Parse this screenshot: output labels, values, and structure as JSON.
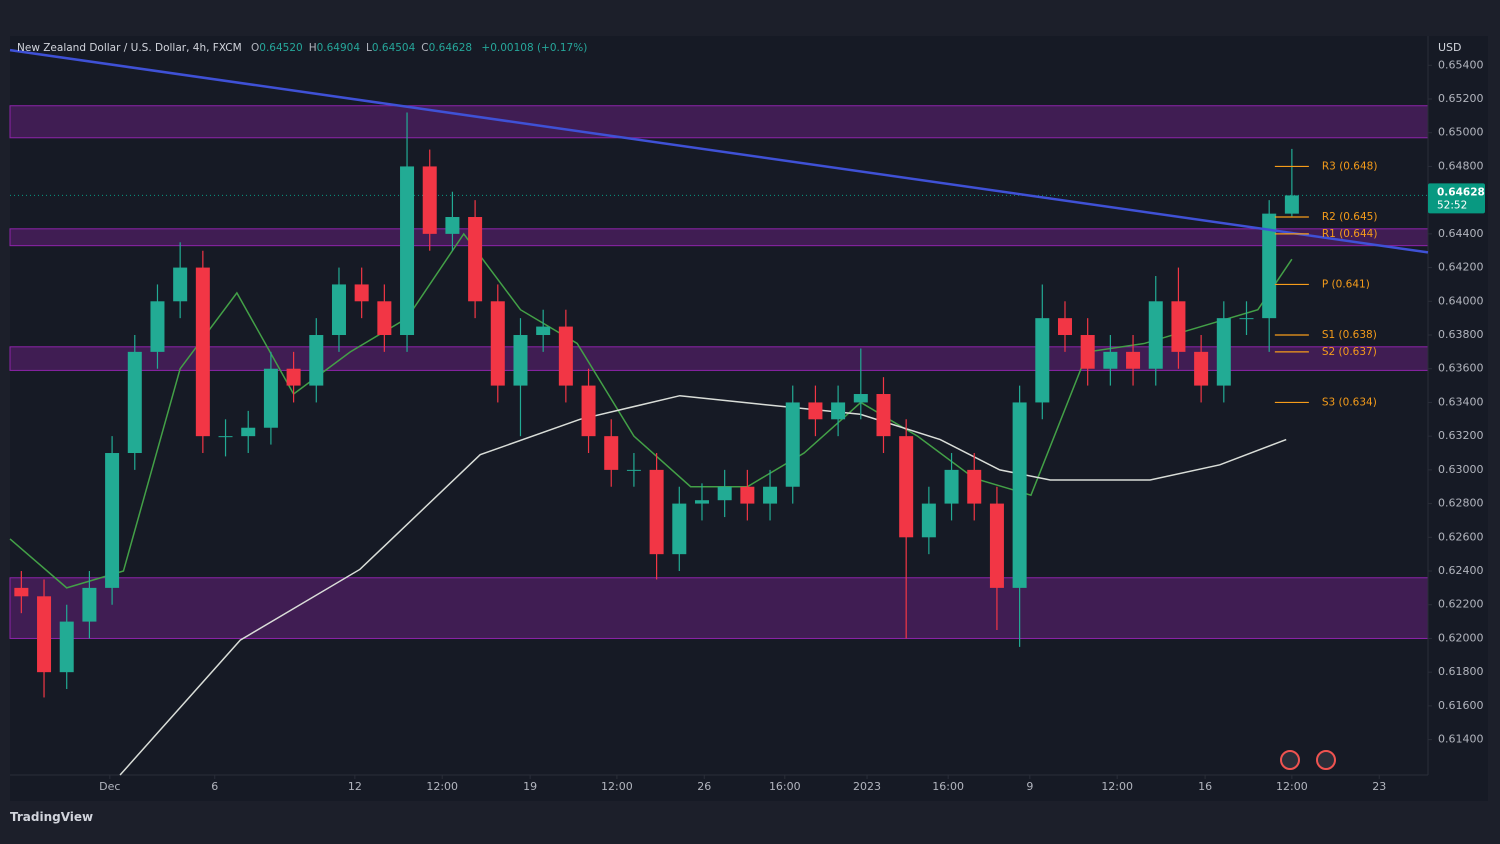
{
  "header": {
    "symbol": "New Zealand Dollar / U.S. Dollar, 4h, FXCM",
    "fields": [
      {
        "key": "O",
        "value": "0.64520"
      },
      {
        "key": "H",
        "value": "0.64904"
      },
      {
        "key": "L",
        "value": "0.64504"
      },
      {
        "key": "C",
        "value": "0.64628"
      }
    ],
    "change": "+0.00108 (+0.17%)"
  },
  "chart_data": {
    "type": "candlestick",
    "currency": "USD",
    "x": [
      2,
      6,
      10,
      14,
      18,
      22,
      26,
      30,
      34,
      38,
      42,
      46,
      50,
      54,
      58,
      62,
      66,
      70,
      74,
      78,
      82,
      86,
      90,
      94,
      98,
      102,
      106,
      110,
      114,
      118,
      122,
      126,
      130,
      134,
      138,
      142,
      146,
      150,
      154,
      158,
      162,
      166,
      170,
      174,
      178,
      182,
      186,
      190,
      194,
      198,
      202,
      206,
      210,
      214,
      218,
      222,
      226
    ],
    "open": [
      0.623,
      0.6225,
      0.618,
      0.621,
      0.623,
      0.631,
      0.637,
      0.64,
      0.642,
      0.632,
      0.632,
      0.6325,
      0.636,
      0.635,
      0.638,
      0.641,
      0.64,
      0.638,
      0.648,
      0.644,
      0.645,
      0.64,
      0.635,
      0.638,
      0.6385,
      0.635,
      0.632,
      0.63,
      0.63,
      0.625,
      0.628,
      0.6282,
      0.629,
      0.628,
      0.629,
      0.634,
      0.633,
      0.634,
      0.6345,
      0.632,
      0.626,
      0.628,
      0.63,
      0.628,
      0.623,
      0.634,
      0.639,
      0.638,
      0.636,
      0.637,
      0.636,
      0.64,
      0.637,
      0.635,
      0.639,
      0.639,
      0.6452
    ],
    "high": [
      0.624,
      0.6235,
      0.622,
      0.624,
      0.632,
      0.638,
      0.641,
      0.6435,
      0.643,
      0.633,
      0.6335,
      0.637,
      0.637,
      0.639,
      0.642,
      0.642,
      0.641,
      0.6512,
      0.649,
      0.6465,
      0.646,
      0.641,
      0.639,
      0.6395,
      0.6395,
      0.636,
      0.633,
      0.631,
      0.631,
      0.629,
      0.6292,
      0.63,
      0.63,
      0.63,
      0.635,
      0.635,
      0.635,
      0.6372,
      0.6355,
      0.633,
      0.629,
      0.631,
      0.631,
      0.629,
      0.635,
      0.641,
      0.64,
      0.639,
      0.638,
      0.638,
      0.6415,
      0.642,
      0.638,
      0.64,
      0.64,
      0.646,
      0.64904
    ],
    "low": [
      0.6215,
      0.6165,
      0.617,
      0.62,
      0.622,
      0.63,
      0.636,
      0.639,
      0.631,
      0.6308,
      0.631,
      0.6315,
      0.634,
      0.634,
      0.637,
      0.639,
      0.637,
      0.637,
      0.643,
      0.643,
      0.639,
      0.634,
      0.632,
      0.637,
      0.634,
      0.631,
      0.629,
      0.629,
      0.6235,
      0.624,
      0.627,
      0.6272,
      0.627,
      0.627,
      0.628,
      0.632,
      0.632,
      0.633,
      0.631,
      0.62,
      0.625,
      0.627,
      0.627,
      0.6205,
      0.6195,
      0.633,
      0.637,
      0.635,
      0.635,
      0.635,
      0.635,
      0.636,
      0.634,
      0.634,
      0.638,
      0.637,
      0.64504
    ],
    "close": [
      0.6225,
      0.618,
      0.621,
      0.623,
      0.631,
      0.637,
      0.64,
      0.642,
      0.632,
      0.632,
      0.6325,
      0.636,
      0.635,
      0.638,
      0.641,
      0.64,
      0.638,
      0.648,
      0.644,
      0.645,
      0.64,
      0.635,
      0.638,
      0.6385,
      0.635,
      0.632,
      0.63,
      0.63,
      0.625,
      0.628,
      0.6282,
      0.629,
      0.628,
      0.629,
      0.634,
      0.633,
      0.634,
      0.6345,
      0.632,
      0.626,
      0.628,
      0.63,
      0.628,
      0.623,
      0.634,
      0.639,
      0.638,
      0.636,
      0.637,
      0.636,
      0.64,
      0.637,
      0.635,
      0.639,
      0.639,
      0.6452,
      0.64628
    ],
    "up_color": "#22ab94",
    "down_color": "#f23645",
    "xlim": [
      0,
      250
    ],
    "ylim": [
      0.6119,
      0.6555
    ],
    "xticks": [
      {
        "value": 17.6,
        "label": "Dec"
      },
      {
        "value": 36.1,
        "label": "6"
      },
      {
        "value": 60.8,
        "label": "12"
      },
      {
        "value": 76.2,
        "label": "12:00"
      },
      {
        "value": 91.7,
        "label": "19"
      },
      {
        "value": 107.0,
        "label": "12:00"
      },
      {
        "value": 122.4,
        "label": "26"
      },
      {
        "value": 136.6,
        "label": "16:00"
      },
      {
        "value": 151.1,
        "label": "2023"
      },
      {
        "value": 165.4,
        "label": "16:00"
      },
      {
        "value": 179.8,
        "label": "9"
      },
      {
        "value": 195.2,
        "label": "12:00"
      },
      {
        "value": 210.7,
        "label": "16"
      },
      {
        "value": 226.0,
        "label": "12:00"
      },
      {
        "value": 241.4,
        "label": "23"
      }
    ],
    "yticks": [
      {
        "value": 0.654,
        "label": "0.65400"
      },
      {
        "value": 0.652,
        "label": "0.65200"
      },
      {
        "value": 0.65,
        "label": "0.65000"
      },
      {
        "value": 0.648,
        "label": "0.64800"
      },
      {
        "value": 0.644,
        "label": "0.64400"
      },
      {
        "value": 0.642,
        "label": "0.64200"
      },
      {
        "value": 0.64,
        "label": "0.64000"
      },
      {
        "value": 0.638,
        "label": "0.63800"
      },
      {
        "value": 0.636,
        "label": "0.63600"
      },
      {
        "value": 0.634,
        "label": "0.63400"
      },
      {
        "value": 0.632,
        "label": "0.63200"
      },
      {
        "value": 0.63,
        "label": "0.63000"
      },
      {
        "value": 0.628,
        "label": "0.62800"
      },
      {
        "value": 0.626,
        "label": "0.62600"
      },
      {
        "value": 0.624,
        "label": "0.62400"
      },
      {
        "value": 0.622,
        "label": "0.62200"
      },
      {
        "value": 0.62,
        "label": "0.62000"
      },
      {
        "value": 0.618,
        "label": "0.61800"
      },
      {
        "value": 0.616,
        "label": "0.61600"
      },
      {
        "value": 0.614,
        "label": "0.61400"
      }
    ],
    "grid": false,
    "zones": [
      [
        0.6497,
        0.6516
      ],
      [
        0.6433,
        0.6443
      ],
      [
        0.6359,
        0.6373
      ],
      [
        0.62,
        0.6236
      ]
    ],
    "zone_color": "#8e24aa",
    "trendline": {
      "x": [
        0,
        250
      ],
      "values": [
        0.6549,
        0.6429
      ],
      "color": "#3f51d6"
    },
    "lines": [
      {
        "color": "#43a047",
        "x": [
          0,
          10,
          20,
          30,
          40,
          50,
          60,
          70,
          80,
          90,
          100,
          110,
          120,
          130,
          140,
          150,
          160,
          170,
          180,
          190,
          200,
          210,
          220,
          226
        ],
        "values": [
          0.6259,
          0.623,
          0.624,
          0.636,
          0.6405,
          0.6345,
          0.637,
          0.639,
          0.644,
          0.6395,
          0.6375,
          0.632,
          0.629,
          0.629,
          0.631,
          0.634,
          0.632,
          0.6295,
          0.6285,
          0.637,
          0.6375,
          0.6385,
          0.6395,
          0.6425
        ]
      },
      {
        "color": "#d9ddd8",
        "x": [
          19.4,
          40.6,
          61.7,
          82.9,
          100.5,
          118.1,
          132.2,
          149.9,
          164.0,
          174.5,
          183.4,
          201.0,
          213.3,
          225.0
        ],
        "values": [
          0.6119,
          0.6199,
          0.6241,
          0.6309,
          0.633,
          0.6344,
          0.6339,
          0.6333,
          0.6318,
          0.63,
          0.6294,
          0.6294,
          0.6303,
          0.6318
        ]
      }
    ],
    "pivot_x": [
      223,
      229
    ],
    "pivots": [
      {
        "value": 0.648,
        "label": "R3 (0.648)"
      },
      {
        "value": 0.645,
        "label": "R2 (0.645)"
      },
      {
        "value": 0.644,
        "label": "R1 (0.644)"
      },
      {
        "value": 0.641,
        "label": "P (0.641)"
      },
      {
        "value": 0.638,
        "label": "S1 (0.638)"
      },
      {
        "value": 0.637,
        "label": "S2 (0.637)"
      },
      {
        "value": 0.634,
        "label": "S3 (0.634)"
      }
    ],
    "pivot_color": "#f59c1a",
    "last_price": 0.64628,
    "countdown": "52:52",
    "last_color": "#089981"
  },
  "footer": {
    "brand": "TradingView"
  }
}
